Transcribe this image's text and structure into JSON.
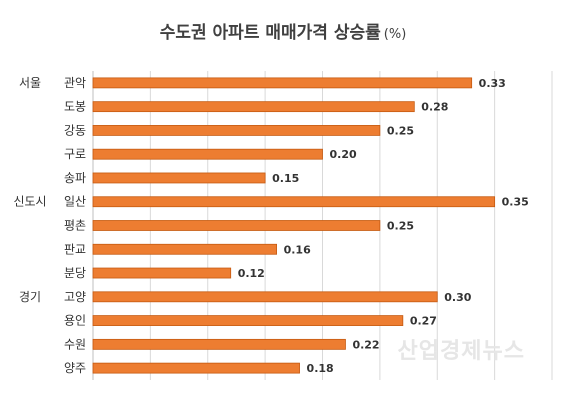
{
  "chart_data": {
    "type": "bar",
    "orientation": "horizontal",
    "title": "수도권 아파트 매매가격 상승률",
    "title_unit": "(%)",
    "groups": [
      {
        "name": "서울",
        "categories": [
          "관악",
          "도봉",
          "강동",
          "구로",
          "송파"
        ]
      },
      {
        "name": "신도시",
        "categories": [
          "일산",
          "평촌",
          "판교",
          "분당"
        ]
      },
      {
        "name": "경기",
        "categories": [
          "고양",
          "용인",
          "수원",
          "양주"
        ]
      }
    ],
    "categories": [
      "관악",
      "도봉",
      "강동",
      "구로",
      "송파",
      "일산",
      "평촌",
      "판교",
      "분당",
      "고양",
      "용인",
      "수원",
      "양주"
    ],
    "values": [
      0.33,
      0.28,
      0.25,
      0.2,
      0.15,
      0.35,
      0.25,
      0.16,
      0.12,
      0.3,
      0.27,
      0.22,
      0.18
    ],
    "value_labels": [
      "0.33",
      "0.28",
      "0.25",
      "0.20",
      "0.15",
      "0.35",
      "0.25",
      "0.16",
      "0.12",
      "0.30",
      "0.27",
      "0.22",
      "0.18"
    ],
    "xlim": [
      0,
      0.4
    ],
    "grid": true,
    "bar_color": "#ed7d31",
    "bar_edge_color": "#c55a11"
  },
  "watermark": "산업경제뉴스"
}
